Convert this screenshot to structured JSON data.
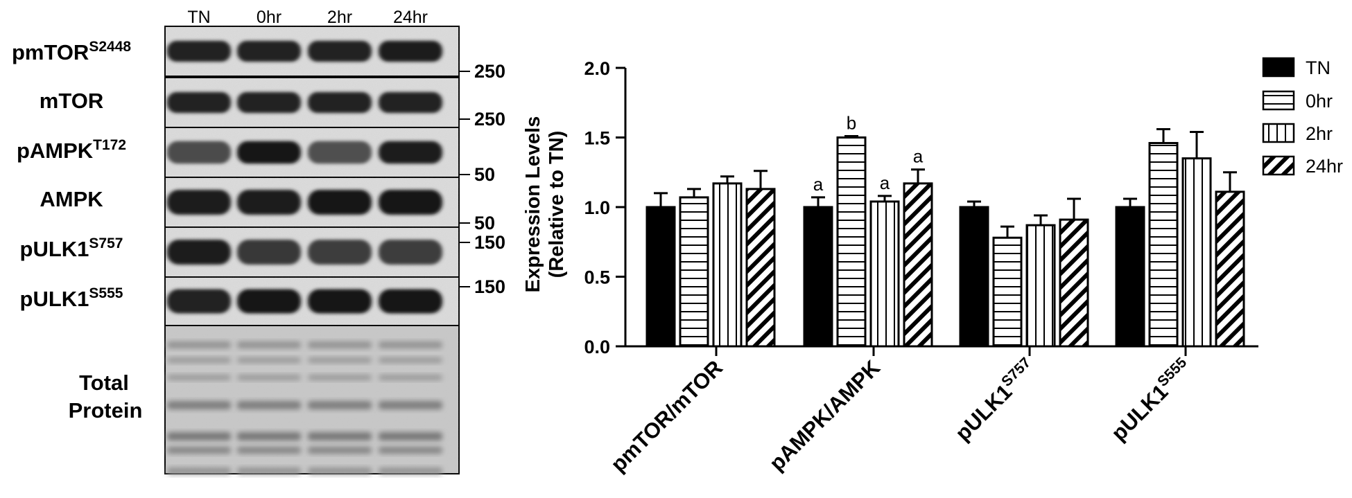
{
  "blot": {
    "lanes": [
      "TN",
      "0hr",
      "2hr",
      "24hr"
    ],
    "rows": [
      {
        "label": "pmTOR",
        "sup": "S2448",
        "marker": "250",
        "intensity": [
          0.85,
          0.85,
          0.85,
          0.9
        ],
        "thickness": 0.42
      },
      {
        "label": "mTOR",
        "sup": "",
        "marker": "250",
        "intensity": [
          0.85,
          0.85,
          0.85,
          0.85
        ],
        "thickness": 0.42
      },
      {
        "label": "pAMPK",
        "sup": "T172",
        "marker": "50",
        "intensity": [
          0.45,
          0.95,
          0.4,
          0.9
        ],
        "thickness": 0.45
      },
      {
        "label": "AMPK",
        "sup": "",
        "marker": "50",
        "intensity": [
          0.9,
          0.9,
          1.0,
          1.0
        ],
        "thickness": 0.5
      },
      {
        "label": "pULK1",
        "sup": "S757",
        "marker": "150",
        "intensity": [
          0.9,
          0.65,
          0.6,
          0.6
        ],
        "thickness": 0.5
      },
      {
        "label": "pULK1",
        "sup": "S555",
        "marker": "150",
        "intensity": [
          0.85,
          1.0,
          1.0,
          0.95
        ],
        "thickness": 0.5
      }
    ],
    "total_protein": {
      "label_line1": "Total",
      "label_line2": "Protein"
    }
  },
  "chart_data": {
    "type": "bar",
    "ylabel_line1": "Expression Levels",
    "ylabel_line2": "(Relative to TN)",
    "ylim": [
      0,
      2.0
    ],
    "yticks": [
      "0.0",
      "0.5",
      "1.0",
      "1.5",
      "2.0"
    ],
    "categories": [
      {
        "label": "pmTOR/mTOR",
        "sup": ""
      },
      {
        "label": "pAMPK/AMPK",
        "sup": ""
      },
      {
        "label": "pULK1",
        "sup": "S757"
      },
      {
        "label": "pULK1",
        "sup": "S555"
      }
    ],
    "series": [
      {
        "name": "TN",
        "pattern": "solid",
        "values": [
          1.0,
          1.0,
          1.0,
          1.0
        ],
        "errors": [
          0.1,
          0.07,
          0.04,
          0.06
        ],
        "annotations": [
          "",
          "a",
          "",
          ""
        ]
      },
      {
        "name": "0hr",
        "pattern": "hlines",
        "values": [
          1.07,
          1.5,
          0.78,
          1.46
        ],
        "errors": [
          0.06,
          0.01,
          0.08,
          0.1
        ],
        "annotations": [
          "",
          "b",
          "",
          ""
        ]
      },
      {
        "name": "2hr",
        "pattern": "vlines",
        "values": [
          1.17,
          1.04,
          0.87,
          1.35
        ],
        "errors": [
          0.05,
          0.04,
          0.07,
          0.19
        ],
        "annotations": [
          "",
          "a",
          "",
          ""
        ]
      },
      {
        "name": "24hr",
        "pattern": "diag",
        "values": [
          1.13,
          1.17,
          0.91,
          1.11
        ],
        "errors": [
          0.13,
          0.1,
          0.15,
          0.14
        ],
        "annotations": [
          "",
          "a",
          "",
          ""
        ]
      }
    ],
    "legend_position": "top-right",
    "grid": false
  }
}
